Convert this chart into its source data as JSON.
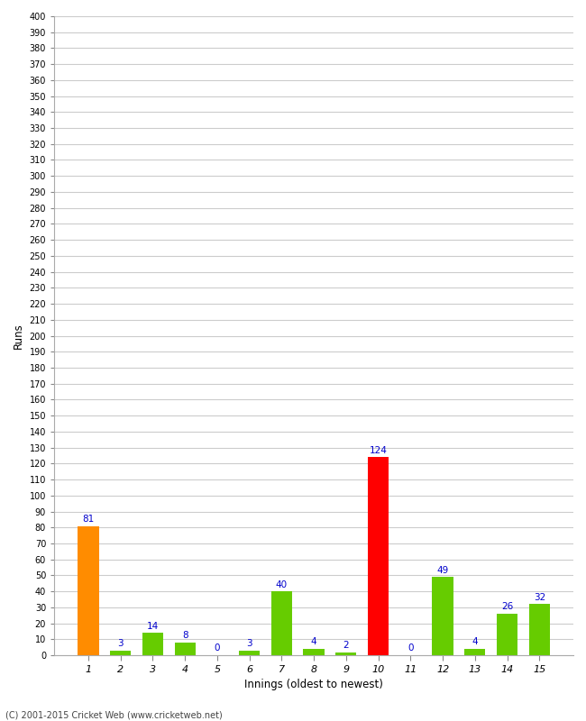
{
  "xlabel": "Innings (oldest to newest)",
  "ylabel": "Runs",
  "categories": [
    1,
    2,
    3,
    4,
    5,
    6,
    7,
    8,
    9,
    10,
    11,
    12,
    13,
    14,
    15
  ],
  "values": [
    81,
    3,
    14,
    8,
    0,
    3,
    40,
    4,
    2,
    124,
    0,
    49,
    4,
    26,
    32
  ],
  "bar_colors": [
    "#ff8c00",
    "#66cc00",
    "#66cc00",
    "#66cc00",
    "#66cc00",
    "#66cc00",
    "#66cc00",
    "#66cc00",
    "#66cc00",
    "#ff0000",
    "#66cc00",
    "#66cc00",
    "#66cc00",
    "#66cc00",
    "#66cc00"
  ],
  "ylim": [
    0,
    400
  ],
  "background_color": "#ffffff",
  "grid_color": "#cccccc",
  "label_color": "#0000cc",
  "footer": "(C) 2001-2015 Cricket Web (www.cricketweb.net)"
}
